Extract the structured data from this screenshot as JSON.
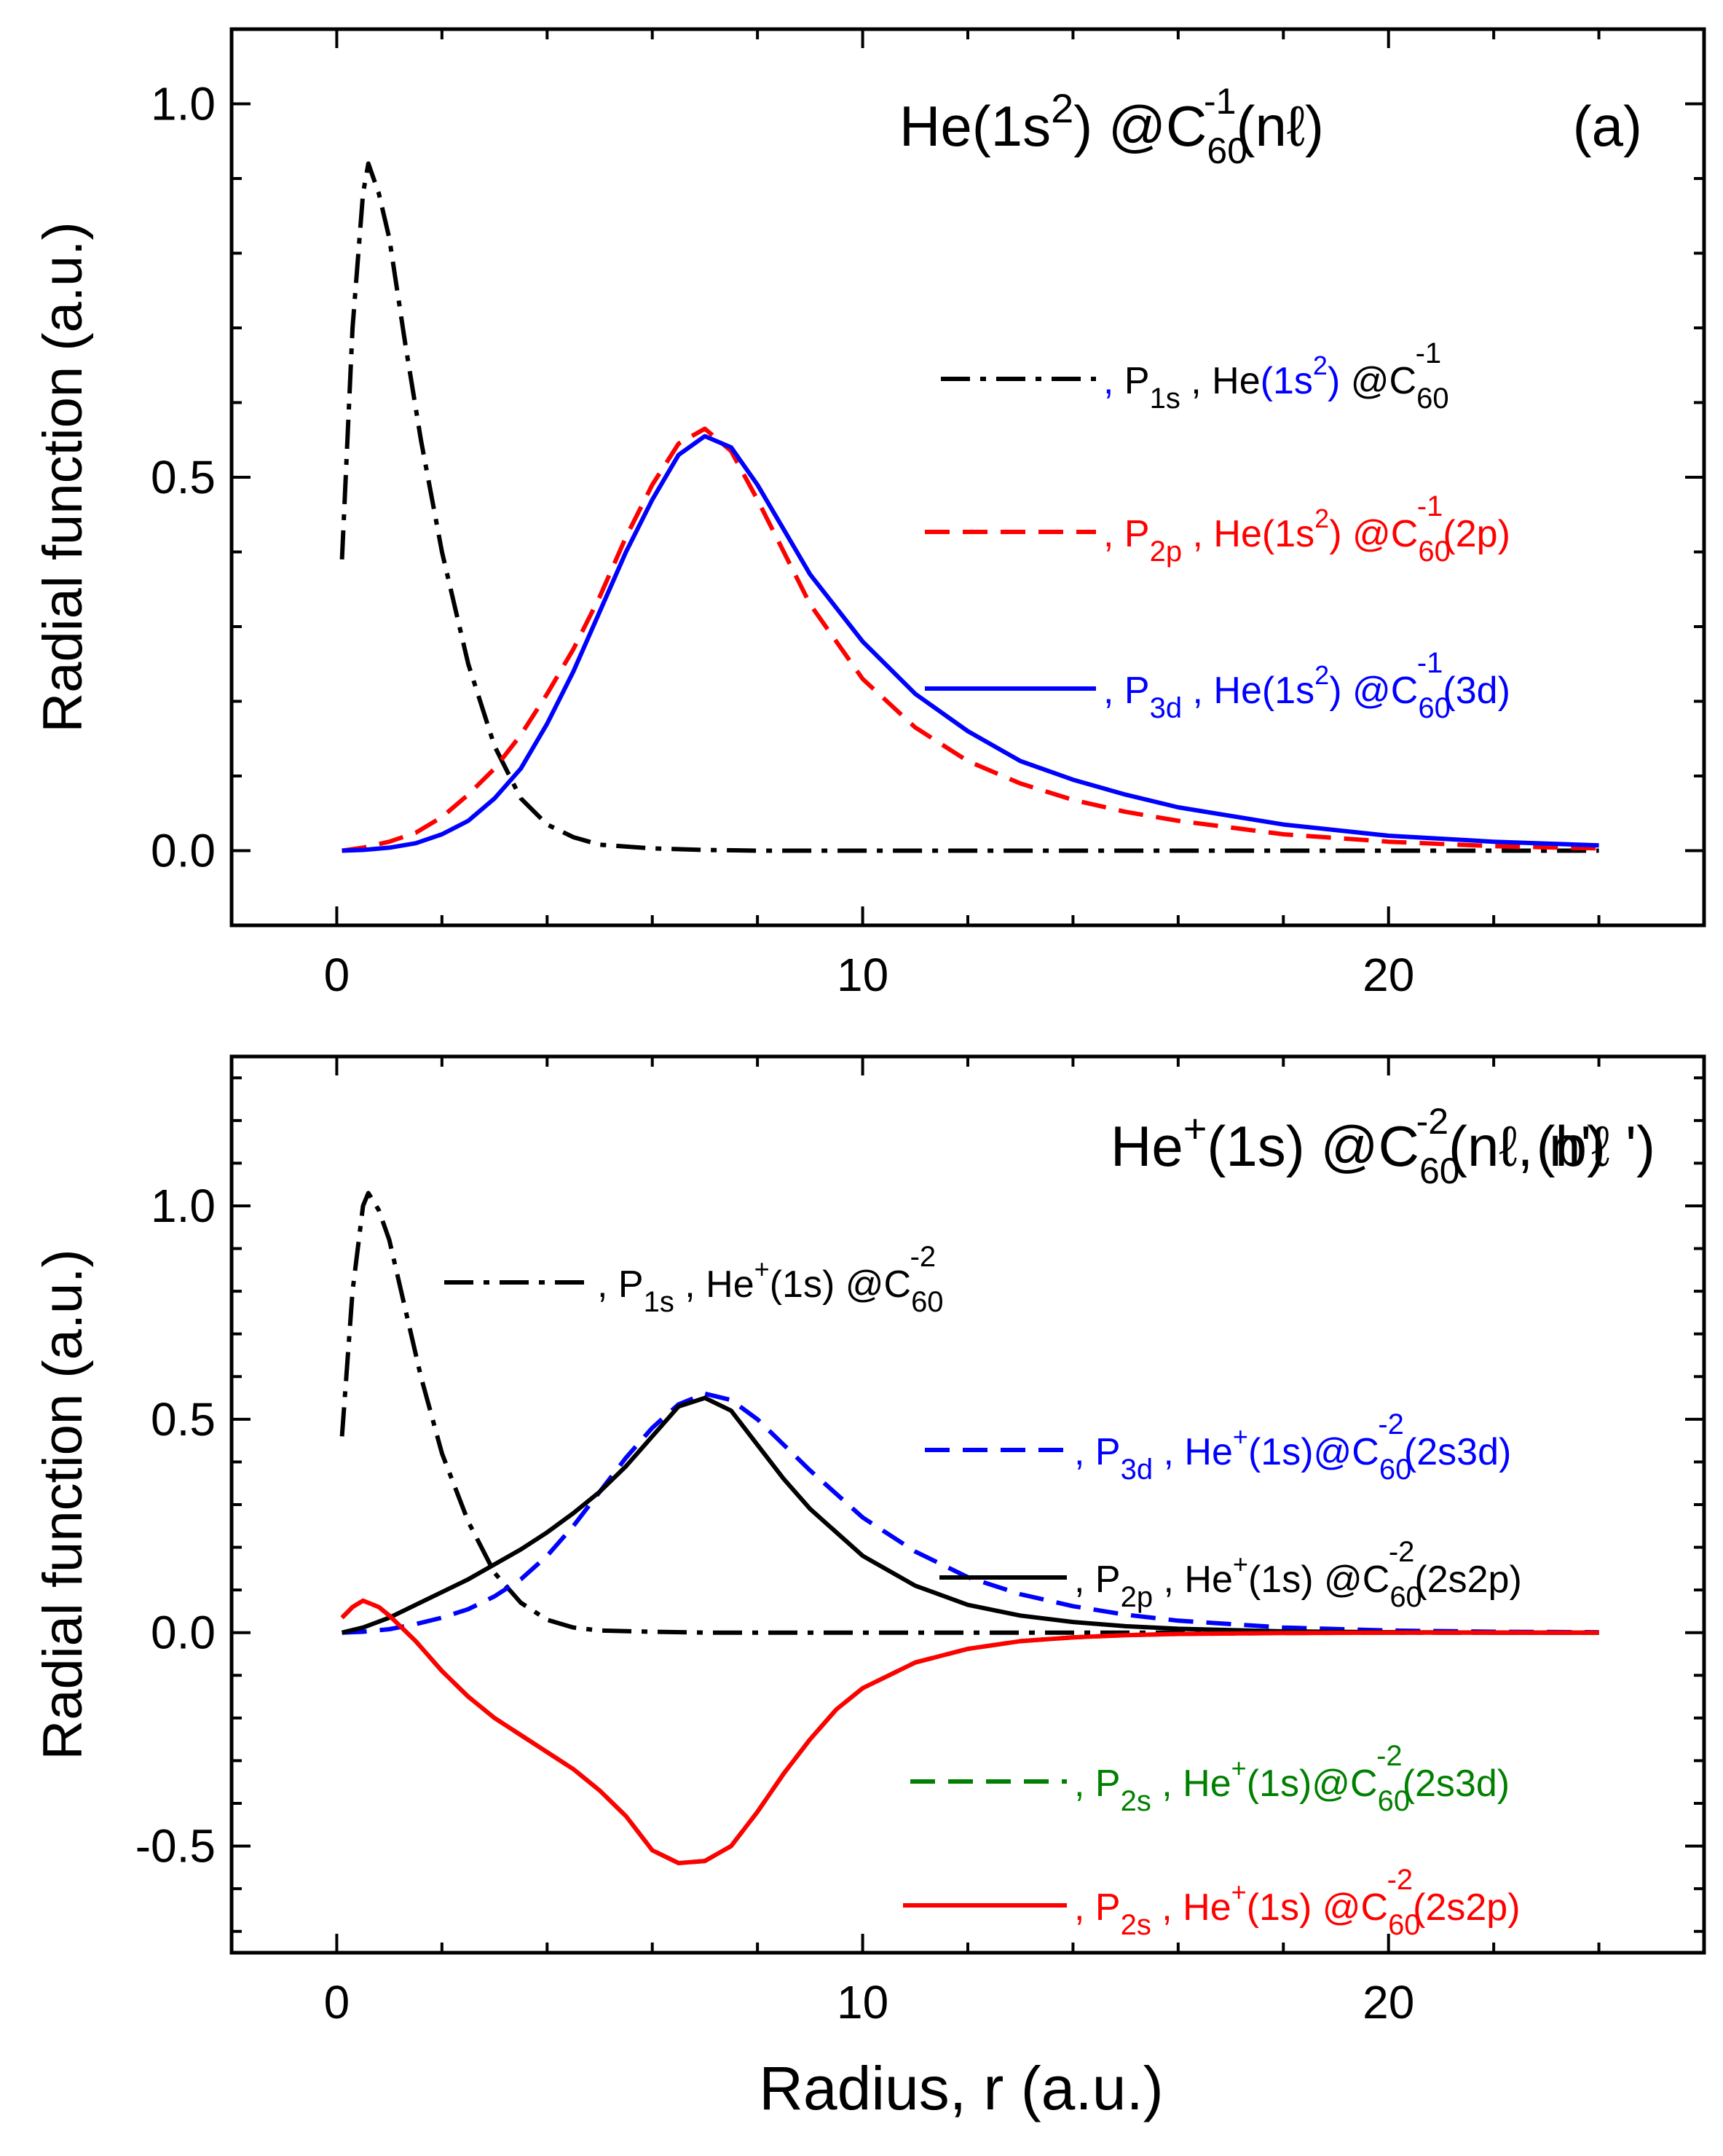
{
  "figure": {
    "xlabel": "Radius, r (a.u.)"
  },
  "chart_data": [
    {
      "id": "a",
      "type": "line",
      "panel_label": "(a)",
      "title": {
        "base": "He(1s",
        "sup1": "2",
        "mid": ") @C",
        "sub": "60",
        "sup2": "-1",
        "tail": "(nℓ)"
      },
      "xlabel": "Radius, r (a.u.)",
      "ylabel": "Radial function  (a.u.)",
      "xlim": [
        -2,
        26
      ],
      "ylim": [
        -0.1,
        1.1
      ],
      "xticks": [
        0,
        10,
        20
      ],
      "xtick_labels": [
        "0",
        "10",
        "20"
      ],
      "yticks": [
        0.0,
        0.5,
        1.0
      ],
      "ytick_labels": [
        "0.0",
        "0.5",
        "1.0"
      ],
      "legend_position": "right",
      "series": [
        {
          "name": "P1s He(1s2) @C60-1",
          "color": "#000000",
          "style": "dashdot",
          "x": [
            0.1,
            0.3,
            0.5,
            0.6,
            0.8,
            1.0,
            1.3,
            1.6,
            2.0,
            2.5,
            3.0,
            3.5,
            4.0,
            4.5,
            5.0,
            6.0,
            7.0,
            8.0,
            10.0,
            12.0,
            15.0,
            20.0,
            24.0
          ],
          "y": [
            0.39,
            0.7,
            0.88,
            0.92,
            0.88,
            0.82,
            0.68,
            0.55,
            0.4,
            0.25,
            0.14,
            0.07,
            0.035,
            0.018,
            0.008,
            0.003,
            0.001,
            0.0,
            0.0,
            0.0,
            0.0,
            0.0,
            0.0
          ],
          "legend": {
            "pre": ", ",
            "p": "P",
            "p_sub": "1s",
            "mid": " , He",
            "open": "(1s",
            "open_sup": "2",
            "close": ")",
            "at": " @C",
            "c_sub": "60",
            "c_sup": "-1",
            "tail": ""
          },
          "legend_colors": {
            "pre": "#0000ff",
            "p": "#000000",
            "he": "#000000",
            "paren": "#0000ff",
            "at": "#000000"
          }
        },
        {
          "name": "P2p He(1s2) @C60-1(2p)",
          "color": "#ff0000",
          "style": "dashed",
          "x": [
            0.1,
            0.5,
            1.0,
            1.5,
            2.0,
            2.5,
            3.0,
            3.5,
            4.0,
            4.5,
            5.0,
            5.5,
            6.0,
            6.5,
            7.0,
            7.5,
            8.0,
            8.5,
            9.0,
            10.0,
            11.0,
            12.0,
            13.0,
            14.0,
            15.0,
            16.0,
            18.0,
            20.0,
            22.0,
            24.0
          ],
          "y": [
            0.0,
            0.004,
            0.012,
            0.024,
            0.045,
            0.075,
            0.11,
            0.155,
            0.21,
            0.27,
            0.34,
            0.42,
            0.49,
            0.545,
            0.565,
            0.535,
            0.47,
            0.4,
            0.33,
            0.23,
            0.165,
            0.12,
            0.09,
            0.068,
            0.052,
            0.04,
            0.022,
            0.012,
            0.006,
            0.003
          ],
          "legend": {
            "pre": ", ",
            "p": "P",
            "p_sub": "2p",
            "mid": " , He",
            "open": "(1s",
            "open_sup": "2",
            "close": ")",
            "at": " @C",
            "c_sub": "60",
            "c_sup": "-1",
            "tail": "(2p)"
          },
          "legend_colors": {
            "pre": "#ff0000",
            "p": "#ff0000",
            "he": "#ff0000",
            "paren": "#ff0000",
            "at": "#ff0000"
          }
        },
        {
          "name": "P3d He(1s2) @C60-1(3d)",
          "color": "#0000ff",
          "style": "solid",
          "x": [
            0.1,
            0.5,
            1.0,
            1.5,
            2.0,
            2.5,
            3.0,
            3.5,
            4.0,
            4.5,
            5.0,
            5.5,
            6.0,
            6.5,
            7.0,
            7.5,
            8.0,
            8.5,
            9.0,
            10.0,
            11.0,
            12.0,
            13.0,
            14.0,
            15.0,
            16.0,
            18.0,
            20.0,
            22.0,
            24.0
          ],
          "y": [
            0.0,
            0.001,
            0.004,
            0.01,
            0.022,
            0.04,
            0.07,
            0.11,
            0.17,
            0.24,
            0.32,
            0.4,
            0.47,
            0.53,
            0.555,
            0.54,
            0.49,
            0.43,
            0.37,
            0.28,
            0.21,
            0.16,
            0.12,
            0.095,
            0.075,
            0.058,
            0.035,
            0.02,
            0.012,
            0.007
          ],
          "legend": {
            "pre": ", ",
            "p": "P",
            "p_sub": "3d",
            "mid": " , He",
            "open": "(1s",
            "open_sup": "2",
            "close": ")",
            "at": " @C",
            "c_sub": "60",
            "c_sup": "-1",
            "tail": "(3d)"
          },
          "legend_colors": {
            "pre": "#0000ff",
            "p": "#0000ff",
            "he": "#0000ff",
            "paren": "#0000ff",
            "at": "#0000ff"
          }
        }
      ]
    },
    {
      "id": "b",
      "type": "line",
      "panel_label": "(b)",
      "title": {
        "base": "He",
        "sup1": "+",
        "mid": "(1s) @C",
        "sub": "60",
        "sup2": "-2",
        "tail": "(nℓ, n'ℓ ')"
      },
      "xlabel": "Radius, r (a.u.)",
      "ylabel": "Radial function  (a.u.)",
      "xlim": [
        -2,
        26
      ],
      "ylim": [
        -0.75,
        1.35
      ],
      "xticks": [
        0,
        10,
        20
      ],
      "xtick_labels": [
        "0",
        "10",
        "20"
      ],
      "yticks": [
        -0.5,
        0.0,
        0.5,
        1.0
      ],
      "ytick_labels": [
        "-0.5",
        "0.0",
        "0.5",
        "1.0"
      ],
      "legend_position": "right",
      "series": [
        {
          "name": "P1s He+(1s) @C60-2",
          "color": "#000000",
          "style": "dashdot",
          "x": [
            0.1,
            0.3,
            0.5,
            0.6,
            0.8,
            1.0,
            1.3,
            1.6,
            2.0,
            2.5,
            3.0,
            3.5,
            4.0,
            4.5,
            5.0,
            6.0,
            7.0,
            8.0,
            10.0,
            12.0,
            15.0,
            20.0,
            24.0
          ],
          "y": [
            0.46,
            0.8,
            1.0,
            1.03,
            0.99,
            0.92,
            0.76,
            0.6,
            0.42,
            0.26,
            0.14,
            0.07,
            0.03,
            0.012,
            0.005,
            0.002,
            0.0,
            0.0,
            0.0,
            0.0,
            0.0,
            0.0,
            0.0
          ],
          "legend": {
            "pre": ", ",
            "p": "P",
            "p_sub": "1s",
            "mid": " , He",
            "open": "",
            "open_sup": "+",
            "close": "(1s)",
            "at": " @C",
            "c_sub": "60",
            "c_sup": "-2",
            "tail": ""
          },
          "legend_colors": {
            "pre": "#000000",
            "p": "#000000",
            "he": "#000000",
            "paren": "#000000",
            "at": "#000000"
          }
        },
        {
          "name": "P3d He+(1s)@C60-2(2s3d)",
          "color": "#0000ff",
          "style": "dashed",
          "x": [
            0.1,
            0.5,
            1.0,
            1.5,
            2.0,
            2.5,
            3.0,
            3.5,
            4.0,
            4.5,
            5.0,
            5.5,
            6.0,
            6.5,
            7.0,
            7.5,
            8.0,
            8.5,
            9.0,
            10.0,
            11.0,
            12.0,
            13.0,
            14.0,
            15.0,
            16.0,
            18.0,
            20.0,
            22.0,
            24.0
          ],
          "y": [
            0.0,
            0.002,
            0.008,
            0.02,
            0.035,
            0.055,
            0.085,
            0.125,
            0.18,
            0.25,
            0.33,
            0.41,
            0.48,
            0.535,
            0.56,
            0.545,
            0.5,
            0.44,
            0.38,
            0.27,
            0.19,
            0.13,
            0.09,
            0.062,
            0.042,
            0.028,
            0.012,
            0.005,
            0.002,
            0.001
          ],
          "legend": {
            "pre": ", ",
            "p": "P",
            "p_sub": "3d",
            "mid": " , He",
            "open": "",
            "open_sup": "+",
            "close": "(1s)",
            "at": "@C",
            "c_sub": "60",
            "c_sup": "-2",
            "tail": "(2s3d)"
          },
          "legend_colors": {
            "pre": "#0000ff",
            "p": "#0000ff",
            "he": "#0000ff",
            "paren": "#0000ff",
            "at": "#0000ff"
          }
        },
        {
          "name": "P2p He+(1s) @C60-2(2s2p)",
          "color": "#000000",
          "style": "solid",
          "x": [
            0.1,
            0.5,
            1.0,
            1.5,
            2.0,
            2.5,
            3.0,
            3.5,
            4.0,
            4.5,
            5.0,
            5.5,
            6.0,
            6.5,
            7.0,
            7.5,
            8.0,
            8.5,
            9.0,
            10.0,
            11.0,
            12.0,
            13.0,
            14.0,
            15.0,
            16.0,
            18.0,
            20.0,
            22.0,
            24.0
          ],
          "y": [
            0.0,
            0.012,
            0.035,
            0.065,
            0.095,
            0.125,
            0.16,
            0.195,
            0.235,
            0.28,
            0.33,
            0.39,
            0.46,
            0.53,
            0.55,
            0.52,
            0.44,
            0.36,
            0.29,
            0.18,
            0.11,
            0.065,
            0.04,
            0.025,
            0.015,
            0.009,
            0.003,
            0.001,
            0.0,
            0.0
          ],
          "legend": {
            "pre": ", ",
            "p": "P",
            "p_sub": "2p",
            "mid": " , He",
            "open": "",
            "open_sup": "+",
            "close": "(1s)",
            "at": " @C",
            "c_sub": "60",
            "c_sup": "-2",
            "tail": "(2s2p)"
          },
          "legend_colors": {
            "pre": "#000000",
            "p": "#000000",
            "he": "#000000",
            "paren": "#000000",
            "at": "#000000"
          }
        },
        {
          "name": "P2s He+(1s)@C60-2(2s3d)",
          "color": "#008000",
          "style": "dashed",
          "x": [
            0.1,
            0.3,
            0.5,
            0.8,
            1.0,
            1.5,
            2.0,
            2.5,
            3.0,
            3.5,
            4.0,
            4.5,
            5.0,
            5.5,
            6.0,
            6.5,
            7.0,
            7.5,
            8.0,
            8.5,
            9.0,
            9.5,
            10.0,
            11.0,
            12.0,
            13.0,
            14.0,
            15.0,
            16.0,
            18.0,
            20.0,
            22.0,
            24.0
          ],
          "y": [
            0.035,
            0.06,
            0.075,
            0.06,
            0.04,
            -0.02,
            -0.09,
            -0.15,
            -0.2,
            -0.24,
            -0.28,
            -0.32,
            -0.37,
            -0.43,
            -0.51,
            -0.54,
            -0.535,
            -0.5,
            -0.42,
            -0.33,
            -0.25,
            -0.18,
            -0.13,
            -0.07,
            -0.038,
            -0.02,
            -0.011,
            -0.006,
            -0.003,
            -0.001,
            0.0,
            0.0,
            0.0
          ],
          "legend": {
            "pre": ", ",
            "p": "P",
            "p_sub": "2s",
            "mid": " , He",
            "open": "",
            "open_sup": "+",
            "close": "(1s)",
            "at": "@C",
            "c_sub": "60",
            "c_sup": "-2",
            "tail": "(2s3d)"
          },
          "legend_colors": {
            "pre": "#008000",
            "p": "#008000",
            "he": "#008000",
            "paren": "#008000",
            "at": "#008000"
          }
        },
        {
          "name": "P2s He+(1s) @C60-2(2s2p)",
          "color": "#ff0000",
          "style": "solid",
          "x": [
            0.1,
            0.3,
            0.5,
            0.8,
            1.0,
            1.5,
            2.0,
            2.5,
            3.0,
            3.5,
            4.0,
            4.5,
            5.0,
            5.5,
            6.0,
            6.5,
            7.0,
            7.5,
            8.0,
            8.5,
            9.0,
            9.5,
            10.0,
            11.0,
            12.0,
            13.0,
            14.0,
            15.0,
            16.0,
            18.0,
            20.0,
            22.0,
            24.0
          ],
          "y": [
            0.035,
            0.06,
            0.075,
            0.06,
            0.04,
            -0.02,
            -0.09,
            -0.15,
            -0.2,
            -0.24,
            -0.28,
            -0.32,
            -0.37,
            -0.43,
            -0.51,
            -0.54,
            -0.535,
            -0.5,
            -0.42,
            -0.33,
            -0.25,
            -0.18,
            -0.13,
            -0.07,
            -0.038,
            -0.02,
            -0.011,
            -0.006,
            -0.003,
            -0.001,
            0.0,
            0.0,
            0.0
          ],
          "legend": {
            "pre": ", ",
            "p": "P",
            "p_sub": "2s",
            "mid": " , He",
            "open": "",
            "open_sup": "+",
            "close": "(1s)",
            "at": " @C",
            "c_sub": "60",
            "c_sup": "-2",
            "tail": "(2s2p)"
          },
          "legend_colors": {
            "pre": "#ff0000",
            "p": "#ff0000",
            "he": "#ff0000",
            "paren": "#ff0000",
            "at": "#ff0000"
          }
        }
      ]
    }
  ]
}
